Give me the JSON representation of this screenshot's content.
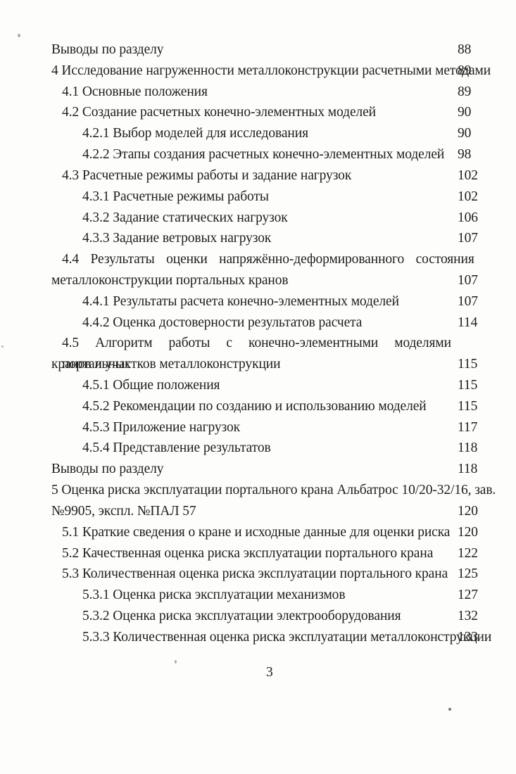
{
  "document": {
    "page_number": "3",
    "toc": {
      "entries": [
        {
          "level": 0,
          "lines": [
            "Выводы по разделу"
          ],
          "page": "88"
        },
        {
          "level": 0,
          "lines": [
            "4 Исследование нагруженности металлоконструкции расчетными методами"
          ],
          "page": "89"
        },
        {
          "level": 1,
          "lines": [
            "4.1 Основные положения"
          ],
          "page": "89"
        },
        {
          "level": 1,
          "lines": [
            "4.2 Создание расчетных конечно-элементных моделей"
          ],
          "page": "90"
        },
        {
          "level": 2,
          "lines": [
            "4.2.1 Выбор моделей для исследования"
          ],
          "page": "90"
        },
        {
          "level": 2,
          "lines": [
            "4.2.2 Этапы создания расчетных конечно-элементных моделей"
          ],
          "page": "98"
        },
        {
          "level": 1,
          "lines": [
            "4.3 Расчетные режимы работы и задание нагрузок"
          ],
          "page": "102"
        },
        {
          "level": 2,
          "lines": [
            "4.3.1 Расчетные режимы работы"
          ],
          "page": "102"
        },
        {
          "level": 2,
          "lines": [
            "4.3.2 Задание статических нагрузок"
          ],
          "page": "106"
        },
        {
          "level": 2,
          "lines": [
            "4.3.3 Задание ветровых нагрузок"
          ],
          "page": "107"
        },
        {
          "level": 1,
          "lines": [
            "4.4 Результаты оценки напряжённо-деформированного состояния",
            "металлоконструкции портальных кранов"
          ],
          "page": "107"
        },
        {
          "level": 2,
          "lines": [
            "4.4.1 Результаты расчета конечно-элементных моделей"
          ],
          "page": "107"
        },
        {
          "level": 2,
          "lines": [
            "4.4.2 Оценка достоверности результатов расчета"
          ],
          "page": "114"
        },
        {
          "level": 1,
          "lines": [
            "4.5 Алгоритм работы с конечно-элементными моделями портальных",
            "кранов и участков металлоконструкции"
          ],
          "page": "115"
        },
        {
          "level": 2,
          "lines": [
            "4.5.1 Общие положения"
          ],
          "page": "115"
        },
        {
          "level": 2,
          "lines": [
            "4.5.2 Рекомендации по созданию и использованию моделей"
          ],
          "page": "115"
        },
        {
          "level": 2,
          "lines": [
            "4.5.3 Приложение нагрузок"
          ],
          "page": "117"
        },
        {
          "level": 2,
          "lines": [
            "4.5.4 Представление результатов"
          ],
          "page": "118"
        },
        {
          "level": 0,
          "lines": [
            "Выводы по разделу"
          ],
          "page": "118"
        },
        {
          "level": 0,
          "lines": [
            "5 Оценка риска эксплуатации портального крана Альбатрос 10/20-32/16, зав.",
            "№9905, экспл. №ПАЛ 57"
          ],
          "page": "120"
        },
        {
          "level": 1,
          "lines": [
            "5.1 Краткие сведения о кране и исходные данные для оценки риска"
          ],
          "page": "120"
        },
        {
          "level": 1,
          "lines": [
            "5.2 Качественная оценка риска эксплуатации портального крана"
          ],
          "page": "122"
        },
        {
          "level": 1,
          "lines": [
            "5.3 Количественная оценка риска эксплуатации портального крана"
          ],
          "page": "125"
        },
        {
          "level": 2,
          "lines": [
            "5.3.1 Оценка риска эксплуатации механизмов"
          ],
          "page": "127"
        },
        {
          "level": 2,
          "lines": [
            "5.3.2 Оценка риска эксплуатации электрооборудования"
          ],
          "page": "132"
        },
        {
          "level": 2,
          "lines": [
            "5.3.3 Количественная оценка риска эксплуатации металлоконструкции"
          ],
          "page": "133"
        }
      ]
    }
  }
}
